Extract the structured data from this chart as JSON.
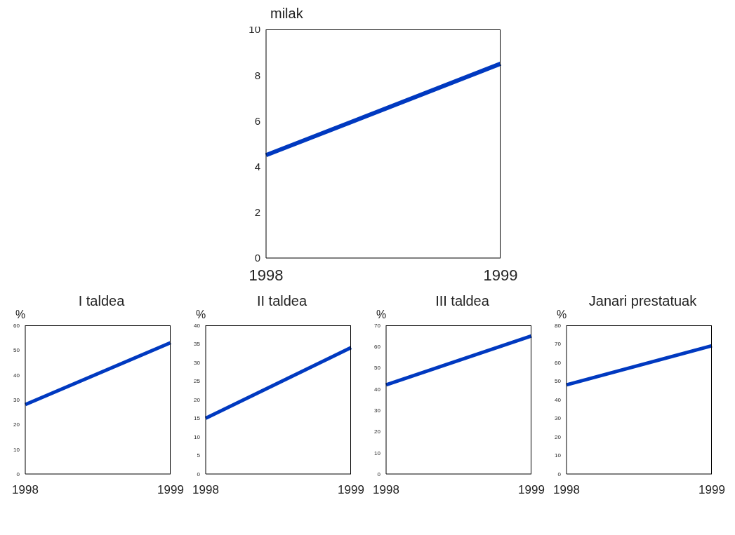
{
  "chart_data": [
    {
      "type": "line",
      "ylabel": "milak",
      "categories": [
        "1998",
        "1999"
      ],
      "values": [
        4.5,
        8.5
      ],
      "color": "#0039c0",
      "ylim": [
        0,
        10
      ],
      "yticks": [
        0,
        2,
        4,
        6,
        8,
        10
      ]
    },
    {
      "type": "line",
      "title": "I taldea",
      "ylabel": "%",
      "categories": [
        "1998",
        "1999"
      ],
      "values": [
        28,
        53
      ],
      "color": "#0039c0",
      "ylim": [
        0,
        60
      ],
      "yticks": [
        0,
        10,
        20,
        30,
        40,
        50,
        60
      ]
    },
    {
      "type": "line",
      "title": "II taldea",
      "ylabel": "%",
      "categories": [
        "1998",
        "1999"
      ],
      "values": [
        15,
        34
      ],
      "color": "#0039c0",
      "ylim": [
        0,
        40
      ],
      "yticks": [
        0,
        5,
        10,
        15,
        20,
        25,
        30,
        35,
        40
      ]
    },
    {
      "type": "line",
      "title": "III taldea",
      "ylabel": "%",
      "categories": [
        "1998",
        "1999"
      ],
      "values": [
        42,
        65
      ],
      "color": "#0039c0",
      "ylim": [
        0,
        70
      ],
      "yticks": [
        0,
        10,
        20,
        30,
        40,
        50,
        60,
        70
      ]
    },
    {
      "type": "line",
      "title": "Janari prestatuak",
      "ylabel": "%",
      "categories": [
        "1998",
        "1999"
      ],
      "values": [
        48,
        69
      ],
      "color": "#0039c0",
      "ylim": [
        0,
        80
      ],
      "yticks": [
        0,
        10,
        20,
        30,
        40,
        50,
        60,
        70,
        80
      ]
    }
  ]
}
